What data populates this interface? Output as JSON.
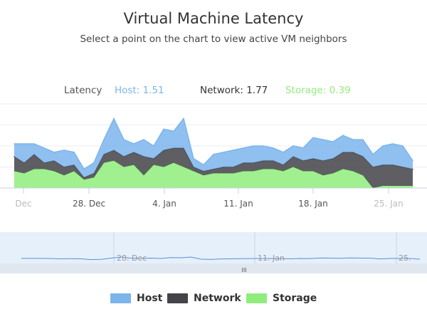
{
  "header": {
    "title": "Virtual Machine Latency",
    "subtitle": "Select a point on the chart to view active VM neighbors"
  },
  "readout": {
    "label": "Latency",
    "host": "Host: 1.51",
    "network": "Network: 1.77",
    "storage": "Storage: 0.39"
  },
  "navigator": {
    "handle_glyph": "III",
    "tick_labels": [
      "28. Dec",
      "11. Jan",
      "25."
    ]
  },
  "legend": [
    {
      "label": "Host",
      "color": "#7cb5ec"
    },
    {
      "label": "Network",
      "color": "#434348"
    },
    {
      "label": "Storage",
      "color": "#90ed7d"
    }
  ],
  "colors": {
    "host": "#7cb5ec",
    "network": "#434348",
    "storage": "#90ed7d"
  },
  "chart_data": {
    "type": "area",
    "stacking": "normal",
    "x_tick_labels": [
      "Dec",
      "28. Dec",
      "4. Jan",
      "11. Jan",
      "18. Jan",
      "25. Jan"
    ],
    "x": [
      "Dec 19",
      "Dec 20",
      "Dec 21",
      "Dec 22",
      "Dec 23",
      "Dec 24",
      "Dec 25",
      "Dec 26",
      "Dec 27",
      "Dec 28",
      "Dec 29",
      "Dec 30",
      "Dec 31",
      "Jan 1",
      "Jan 2",
      "Jan 3",
      "Jan 4",
      "Jan 5",
      "Jan 6",
      "Jan 7",
      "Jan 8",
      "Jan 9",
      "Jan 10",
      "Jan 11",
      "Jan 12",
      "Jan 13",
      "Jan 14",
      "Jan 15",
      "Jan 16",
      "Jan 17",
      "Jan 18",
      "Jan 19",
      "Jan 20",
      "Jan 21",
      "Jan 22",
      "Jan 23",
      "Jan 24",
      "Jan 25",
      "Jan 26",
      "Jan 27",
      "Jan 28"
    ],
    "series": [
      {
        "name": "Storage",
        "values": [
          0.8,
          0.7,
          0.9,
          0.9,
          0.8,
          0.6,
          0.8,
          0.4,
          0.5,
          1.2,
          1.3,
          1.0,
          1.1,
          0.6,
          1.1,
          1.0,
          1.2,
          1.0,
          0.8,
          0.6,
          0.7,
          0.7,
          0.7,
          0.8,
          0.8,
          0.9,
          0.9,
          0.8,
          1.0,
          0.8,
          0.8,
          0.6,
          0.7,
          0.9,
          0.8,
          0.6,
          0.0,
          0.1,
          0.1,
          0.1,
          0.1
        ]
      },
      {
        "name": "Network",
        "values": [
          0.7,
          0.5,
          0.7,
          0.3,
          0.5,
          0.4,
          0.3,
          0.1,
          0.2,
          0.4,
          0.5,
          0.5,
          0.6,
          0.9,
          0.3,
          0.8,
          0.7,
          0.9,
          0.2,
          0.2,
          0.2,
          0.3,
          0.3,
          0.4,
          0.4,
          0.4,
          0.4,
          0.3,
          0.5,
          0.5,
          0.6,
          0.7,
          0.7,
          0.8,
          0.9,
          0.9,
          1.0,
          1.0,
          1.0,
          0.9,
          0.8
        ]
      },
      {
        "name": "Host",
        "values": [
          0.6,
          0.9,
          0.5,
          0.7,
          0.4,
          0.8,
          0.6,
          0.4,
          0.5,
          0.7,
          1.5,
          0.8,
          0.4,
          0.8,
          0.6,
          1.0,
          0.8,
          1.4,
          0.4,
          0.3,
          0.7,
          0.7,
          0.8,
          0.7,
          0.8,
          0.7,
          0.6,
          0.6,
          0.5,
          0.6,
          1.0,
          1.0,
          0.8,
          0.8,
          0.6,
          0.8,
          0.6,
          0.9,
          1.0,
          1.0,
          0.4
        ]
      }
    ],
    "ylim": [
      0,
      4.2
    ],
    "grid": "horizontal",
    "legend_position": "bottom-center"
  }
}
